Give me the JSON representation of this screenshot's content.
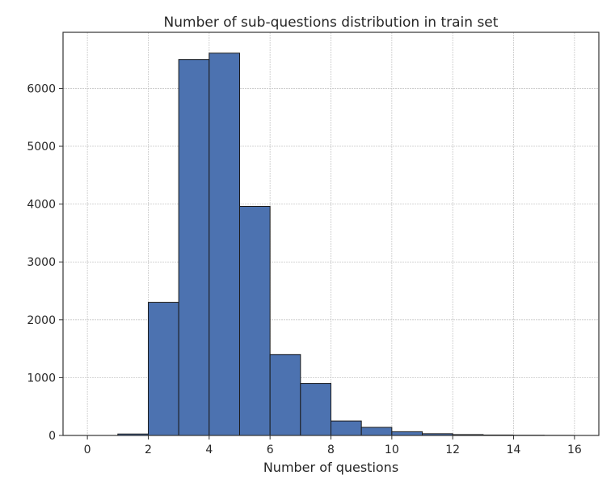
{
  "chart_data": {
    "type": "bar",
    "title": "Number of sub-questions distribution in train set",
    "xlabel": "Number of questions",
    "ylabel": "",
    "bins": [
      {
        "x0": 0,
        "x1": 1,
        "value": 0
      },
      {
        "x0": 1,
        "x1": 2,
        "value": 25
      },
      {
        "x0": 2,
        "x1": 3,
        "value": 2300
      },
      {
        "x0": 3,
        "x1": 4,
        "value": 6500
      },
      {
        "x0": 4,
        "x1": 5,
        "value": 6610
      },
      {
        "x0": 5,
        "x1": 6,
        "value": 3960
      },
      {
        "x0": 6,
        "x1": 7,
        "value": 1400
      },
      {
        "x0": 7,
        "x1": 8,
        "value": 900
      },
      {
        "x0": 8,
        "x1": 9,
        "value": 250
      },
      {
        "x0": 9,
        "x1": 10,
        "value": 140
      },
      {
        "x0": 10,
        "x1": 11,
        "value": 65
      },
      {
        "x0": 11,
        "x1": 12,
        "value": 30
      },
      {
        "x0": 12,
        "x1": 13,
        "value": 15
      },
      {
        "x0": 13,
        "x1": 14,
        "value": 8
      },
      {
        "x0": 14,
        "x1": 15,
        "value": 4
      },
      {
        "x0": 15,
        "x1": 16,
        "value": 2
      }
    ],
    "xlim": [
      -0.8,
      16.8
    ],
    "ylim": [
      0,
      6970
    ],
    "x_ticks": [
      0,
      2,
      4,
      6,
      8,
      10,
      12,
      14,
      16
    ],
    "x_tick_labels": [
      "0",
      "2",
      "4",
      "6",
      "8",
      "10",
      "12",
      "14",
      "16"
    ],
    "y_ticks": [
      0,
      1000,
      2000,
      3000,
      4000,
      5000,
      6000
    ],
    "y_tick_labels": [
      "0",
      "1000",
      "2000",
      "3000",
      "4000",
      "5000",
      "6000"
    ],
    "grid": true,
    "colors": {
      "bar": "#4c72b0",
      "edge": "#1a1a1a",
      "grid": "#c8c8c8"
    }
  }
}
